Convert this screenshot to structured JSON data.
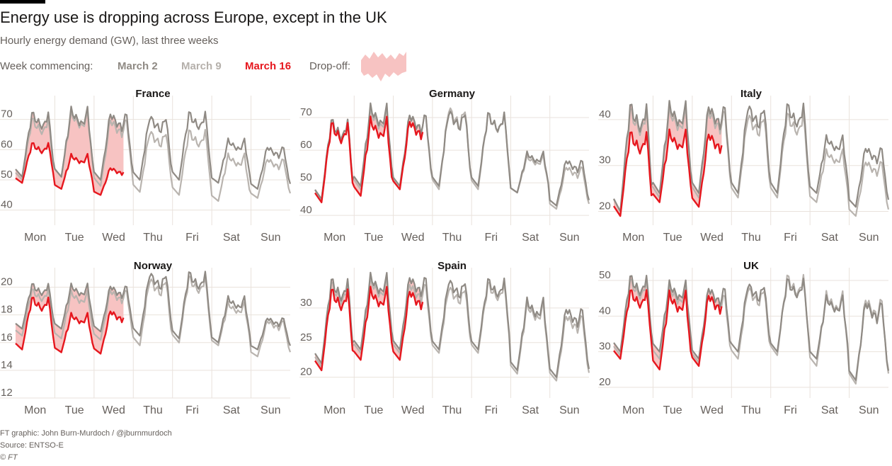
{
  "title": "Energy use is dropping across Europe, except in the UK",
  "subtitle": "Hourly energy demand (GW), last three weeks",
  "legend": {
    "prefix": "Week commencing:",
    "march2": "March 2",
    "march9": "March 9",
    "march16": "March 16",
    "dropoff": "Drop-off:"
  },
  "colors": {
    "march2": "#8f8a84",
    "march9": "#b9b4af",
    "march16": "#e6171e",
    "dropoff_fill": "#f7c3c2",
    "grid": "#e9e2dc",
    "axis_text": "#66605c"
  },
  "footer": {
    "credit": "FT graphic: John Burn-Murdoch / @jburnmurdoch",
    "source": "Source: ENTSO-E",
    "copyright": "© FT"
  },
  "chart_data": [
    {
      "type": "line",
      "title": "France",
      "x": [
        "Mon",
        "Tue",
        "Wed",
        "Thu",
        "Fri",
        "Sat",
        "Sun"
      ],
      "yticks": [
        40,
        50,
        60,
        70
      ],
      "ylim": [
        35,
        76
      ],
      "series": [
        {
          "name": "March 2",
          "peaks": [
            72,
            73,
            72,
            71,
            72,
            63,
            61
          ],
          "troughs": [
            51,
            51,
            50,
            50,
            50,
            49,
            47
          ]
        },
        {
          "name": "March 9",
          "peaks": [
            70,
            72,
            70,
            66,
            66,
            58,
            57
          ],
          "troughs": [
            50,
            51,
            48,
            46,
            45,
            43,
            44
          ]
        },
        {
          "name": "March 16",
          "peaks": [
            62,
            58,
            54
          ],
          "troughs": [
            49,
            47,
            45
          ],
          "days": 2.75
        }
      ]
    },
    {
      "type": "line",
      "title": "Germany",
      "x": [
        "Mon",
        "Tue",
        "Wed",
        "Thu",
        "Fri",
        "Sat",
        "Sun"
      ],
      "yticks": [
        40,
        50,
        60,
        70
      ],
      "ylim": [
        37,
        75
      ],
      "series": [
        {
          "name": "March 2",
          "peaks": [
            69,
            73,
            71,
            72,
            71,
            59,
            57
          ],
          "troughs": [
            45,
            49,
            49,
            49,
            49,
            47,
            43
          ]
        },
        {
          "name": "March 9",
          "peaks": [
            69,
            72,
            71,
            73,
            71,
            58,
            55
          ],
          "troughs": [
            45,
            48,
            48,
            48,
            48,
            47,
            42
          ]
        },
        {
          "name": "March 16",
          "peaks": [
            68,
            69,
            69
          ],
          "troughs": [
            44,
            46,
            48
          ],
          "days": 2.75
        }
      ]
    },
    {
      "type": "line",
      "title": "Italy",
      "x": [
        "Mon",
        "Tue",
        "Wed",
        "Thu",
        "Fri",
        "Sat",
        "Sun"
      ],
      "yticks": [
        20,
        30,
        40
      ],
      "ylim": [
        17,
        44
      ],
      "series": [
        {
          "name": "March 2",
          "peaks": [
            43,
            43,
            43,
            43,
            43,
            36,
            34
          ],
          "troughs": [
            20,
            24,
            24,
            24,
            24,
            24,
            21
          ]
        },
        {
          "name": "March 9",
          "peaks": [
            42,
            42,
            42,
            41,
            41,
            33,
            31
          ],
          "troughs": [
            20,
            23,
            23,
            23,
            23,
            22,
            19
          ]
        },
        {
          "name": "March 16",
          "peaks": [
            37,
            37,
            37
          ],
          "troughs": [
            19,
            22,
            21
          ],
          "days": 2.75
        }
      ]
    },
    {
      "type": "line",
      "title": "Norway",
      "x": [
        "Mon",
        "Tue",
        "Wed",
        "Thu",
        "Fri",
        "Sat",
        "Sun"
      ],
      "yticks": [
        12,
        14,
        16,
        18,
        20
      ],
      "ylim": [
        12,
        21
      ],
      "series": [
        {
          "name": "March 2",
          "peaks": [
            20.2,
            20.1,
            20.1,
            21,
            21,
            19.2,
            17.8
          ],
          "troughs": [
            17,
            17,
            16.8,
            16.5,
            16.3,
            16,
            15.5
          ]
        },
        {
          "name": "March 9",
          "peaks": [
            19.8,
            19.6,
            19.8,
            20.6,
            20.7,
            18.8,
            17.6
          ],
          "troughs": [
            16.5,
            16.3,
            16.2,
            15.8,
            16,
            15.8,
            15
          ]
        },
        {
          "name": "March 16",
          "peaks": [
            19.2,
            18,
            18.3
          ],
          "troughs": [
            15.5,
            15.3,
            15.2
          ],
          "days": 2.75
        }
      ]
    },
    {
      "type": "line",
      "title": "Spain",
      "x": [
        "Mon",
        "Tue",
        "Wed",
        "Thu",
        "Fri",
        "Sat",
        "Sun"
      ],
      "yticks": [
        20,
        25,
        30
      ],
      "ylim": [
        17,
        35
      ],
      "series": [
        {
          "name": "March 2",
          "peaks": [
            34,
            34.5,
            34.5,
            34,
            34,
            31,
            30
          ],
          "troughs": [
            22,
            24,
            24,
            24,
            24,
            21,
            20
          ]
        },
        {
          "name": "March 9",
          "peaks": [
            33.5,
            34,
            33.5,
            33,
            33.5,
            30.5,
            29
          ],
          "troughs": [
            21.5,
            23.5,
            23.5,
            23.5,
            23.5,
            20.5,
            19.5
          ]
        },
        {
          "name": "March 16",
          "peaks": [
            32.5,
            32.5,
            32.5
          ],
          "troughs": [
            21,
            22.5,
            22.5
          ],
          "days": 2.75
        }
      ]
    },
    {
      "type": "line",
      "title": "UK",
      "x": [
        "Mon",
        "Tue",
        "Wed",
        "Thu",
        "Fri",
        "Sat",
        "Sun"
      ],
      "yticks": [
        20,
        30,
        40,
        50
      ],
      "ylim": [
        17,
        52
      ],
      "series": [
        {
          "name": "March 2",
          "peaks": [
            51,
            49,
            48,
            49,
            50,
            45,
            44
          ],
          "troughs": [
            30,
            30,
            28,
            30,
            30,
            28,
            22
          ]
        },
        {
          "name": "March 9",
          "peaks": [
            50,
            48,
            46,
            48,
            51,
            46,
            45
          ],
          "troughs": [
            29,
            28,
            27,
            28,
            29,
            26,
            21
          ]
        },
        {
          "name": "March 16",
          "peaks": [
            47,
            46,
            46
          ],
          "troughs": [
            28,
            25,
            26
          ],
          "days": 2.75
        }
      ]
    }
  ]
}
